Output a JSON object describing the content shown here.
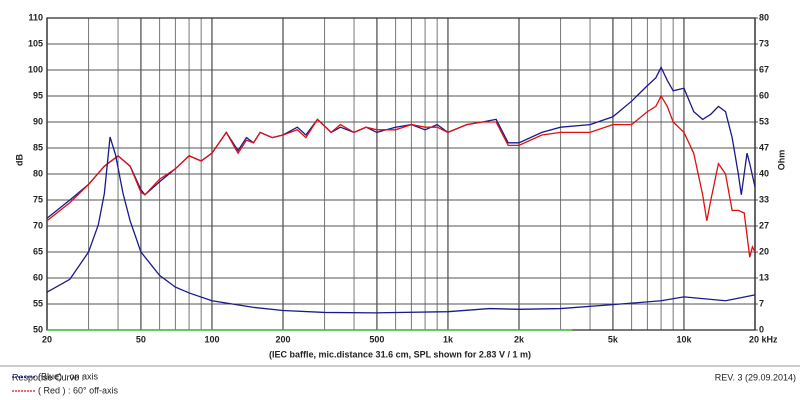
{
  "chart_data": {
    "type": "line",
    "x_log": true,
    "y_label": "dB",
    "y2_label": "Ohm",
    "caption": "(IEC baffle, mic.distance 31.6 cm, SPL shown for 2.83 V / 1 m)",
    "footer_title": "Response Curve :",
    "revision": "REV. 3 (29.09.2014)",
    "xlim": [
      20,
      20000
    ],
    "xticks": [
      20,
      50,
      100,
      200,
      500,
      {
        "value": 1000,
        "label": "1k"
      },
      {
        "value": 2000,
        "label": "2k"
      },
      {
        "value": 5000,
        "label": "5k"
      },
      {
        "value": 10000,
        "label": "10k"
      },
      {
        "value": 20000,
        "label": "20 kHz"
      }
    ],
    "xgrid": [
      30,
      40,
      60,
      70,
      80,
      90,
      300,
      400,
      600,
      700,
      800,
      900,
      3000,
      4000,
      6000,
      7000,
      8000,
      9000
    ],
    "ylim": [
      50,
      110
    ],
    "yticks": [
      50,
      55,
      60,
      65,
      70,
      75,
      80,
      85,
      90,
      95,
      100,
      105,
      110
    ],
    "y2lim": [
      0,
      80
    ],
    "y2ticks": [
      0,
      {
        "value": 6.667,
        "label": "7"
      },
      {
        "value": 13.333,
        "label": "13"
      },
      20,
      {
        "value": 26.667,
        "label": "27"
      },
      {
        "value": 33.333,
        "label": "33"
      },
      40,
      {
        "value": 46.667,
        "label": "47"
      },
      {
        "value": 53.333,
        "label": "53"
      },
      60,
      {
        "value": 66.667,
        "label": "67"
      },
      {
        "value": 73.333,
        "label": "73"
      },
      80
    ],
    "grid": true,
    "series": [
      {
        "name": "(Blue) : on axis",
        "color": "#1a1a8c",
        "x": [
          20,
          25,
          30,
          35,
          40,
          45,
          50,
          52,
          60,
          70,
          80,
          90,
          100,
          115,
          129,
          140,
          150,
          160,
          180,
          200,
          230,
          250,
          280,
          320,
          350,
          400,
          450,
          500,
          600,
          700,
          800,
          900,
          1000,
          1200,
          1400,
          1600,
          1800,
          2000,
          2500,
          3000,
          4000,
          5000,
          6000,
          7000,
          7600,
          8000,
          8500,
          9000,
          10000,
          11000,
          12000,
          13000,
          14000,
          15000,
          16000,
          17000,
          17500,
          18500,
          19000,
          20000
        ],
        "values": [
          71.5,
          75,
          78,
          81.5,
          83.5,
          81.5,
          77,
          76,
          78.5,
          81,
          83.5,
          82.5,
          84,
          88,
          84.5,
          87,
          86,
          88,
          87,
          87.5,
          89,
          87.5,
          90.5,
          88,
          89,
          88,
          89,
          88,
          89,
          89.5,
          88.5,
          89.5,
          88,
          89.5,
          90,
          90.5,
          86,
          86,
          88,
          89,
          89.5,
          91,
          94,
          97,
          98.5,
          100.5,
          98,
          96,
          96.5,
          92,
          90.5,
          91.5,
          93,
          92,
          87,
          80,
          76,
          84,
          82,
          77.5
        ]
      },
      {
        "name": "( Red ) : 60° off-axis",
        "color": "#e01010",
        "x": [
          20,
          25,
          30,
          35,
          40,
          45,
          50,
          52,
          60,
          70,
          80,
          90,
          100,
          115,
          129,
          140,
          150,
          160,
          180,
          200,
          230,
          250,
          280,
          320,
          350,
          400,
          450,
          500,
          600,
          700,
          800,
          900,
          1000,
          1200,
          1400,
          1600,
          1800,
          2000,
          2500,
          3000,
          4000,
          5000,
          6000,
          7000,
          7600,
          8000,
          8500,
          9000,
          10000,
          11000,
          12000,
          12500,
          13000,
          14000,
          15000,
          16000,
          17000,
          18000,
          19000,
          19500,
          20000
        ],
        "values": [
          71,
          74.5,
          78,
          81.5,
          83.5,
          81.5,
          76.5,
          76,
          79,
          81,
          83.5,
          82.5,
          84,
          88,
          84,
          86.5,
          86,
          88,
          87,
          87.5,
          88.5,
          87,
          90.5,
          88,
          89.5,
          88,
          89,
          88.5,
          88.5,
          89.5,
          89,
          89,
          88,
          89.5,
          90,
          90,
          85.5,
          85.5,
          87.5,
          88,
          88,
          89.5,
          89.5,
          92,
          93,
          95,
          93,
          90,
          88,
          84,
          76,
          71,
          75,
          82,
          80,
          73,
          73,
          72.5,
          64,
          66,
          65
        ]
      },
      {
        "color": "#1a1a8c",
        "axis": "y2",
        "x": [
          20,
          25,
          30,
          33,
          35,
          37,
          39,
          42,
          45,
          50,
          60,
          70,
          80,
          100,
          150,
          200,
          300,
          500,
          1000,
          1500,
          2000,
          3000,
          5000,
          8000,
          10000,
          15000,
          20000
        ],
        "values": [
          9.7,
          13,
          20,
          27,
          35,
          49.5,
          45,
          35,
          28,
          20,
          14,
          11,
          9.5,
          7.5,
          5.8,
          5,
          4.5,
          4.4,
          4.7,
          5.5,
          5.3,
          5.5,
          6.5,
          7.5,
          8.5,
          7.5,
          9
        ]
      },
      {
        "color": "#33cc33",
        "x": [
          20,
          3360
        ],
        "values": [
          50,
          50
        ]
      }
    ]
  }
}
